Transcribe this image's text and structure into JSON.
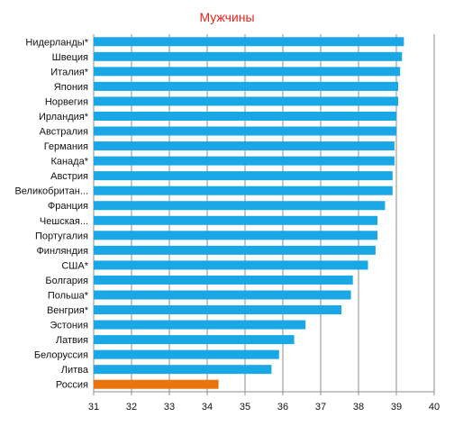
{
  "chart_data": {
    "type": "bar",
    "orientation": "horizontal",
    "title": "Мужчины",
    "xlabel": "",
    "ylabel": "",
    "xlim": [
      31,
      40
    ],
    "x_ticks": [
      "31",
      "32",
      "33",
      "34",
      "35",
      "36",
      "37",
      "38",
      "39",
      "40"
    ],
    "grid": "vertical",
    "legend": "none",
    "bar_color": "#1aa7e6",
    "highlight_color": "#e8730f",
    "highlight_category": "Россия",
    "categories": [
      "Нидерланды*",
      "Швеция",
      "Италия*",
      "Япония",
      "Норвегия",
      "Ирландия*",
      "Австралия",
      "Германия",
      "Канада*",
      "Австрия",
      "Великобритан...",
      "Франция",
      "Чешская...",
      "Португалия",
      "Финляндия",
      "США*",
      "Болгария",
      "Польша*",
      "Венгрия*",
      "Эстония",
      "Латвия",
      "Белоруссия",
      "Литва",
      "Россия"
    ],
    "values": [
      39.2,
      39.15,
      39.1,
      39.05,
      39.05,
      39.0,
      39.0,
      38.95,
      38.95,
      38.9,
      38.9,
      38.7,
      38.5,
      38.5,
      38.45,
      38.25,
      37.85,
      37.8,
      37.55,
      36.6,
      36.3,
      35.9,
      35.7,
      34.3
    ]
  }
}
